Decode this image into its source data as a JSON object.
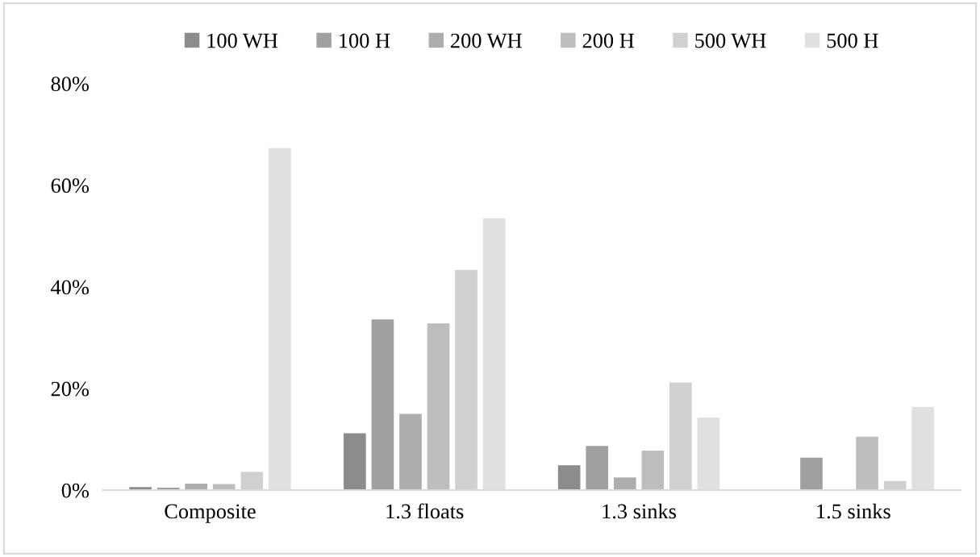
{
  "chart_data": {
    "type": "bar",
    "categories": [
      "Composite",
      "1.3 floats",
      "1.3 sinks",
      "1.5 sinks"
    ],
    "series": [
      {
        "name": "100 WH",
        "color": "#8c8c8c",
        "values": [
          0.6,
          11.2,
          4.9,
          0
        ]
      },
      {
        "name": "100 H",
        "color": "#a0a0a0",
        "values": [
          0.5,
          33.6,
          8.7,
          6.4
        ]
      },
      {
        "name": "200 WH",
        "color": "#adadad",
        "values": [
          1.3,
          15.0,
          2.5,
          0
        ]
      },
      {
        "name": "200 H",
        "color": "#bdbdbd",
        "values": [
          1.2,
          32.8,
          7.8,
          10.5
        ]
      },
      {
        "name": "500 WH",
        "color": "#d0d0d0",
        "values": [
          3.6,
          43.3,
          21.2,
          1.8
        ]
      },
      {
        "name": "500 H",
        "color": "#e0e0e0",
        "values": [
          67.3,
          53.5,
          14.3,
          16.4
        ]
      }
    ],
    "ylim": [
      0,
      80
    ],
    "yticks": [
      {
        "value": 0,
        "label": "0%"
      },
      {
        "value": 20,
        "label": "20%"
      },
      {
        "value": 40,
        "label": "40%"
      },
      {
        "value": 60,
        "label": "60%"
      },
      {
        "value": 80,
        "label": "80%"
      }
    ],
    "grid": false,
    "legend": "top"
  }
}
